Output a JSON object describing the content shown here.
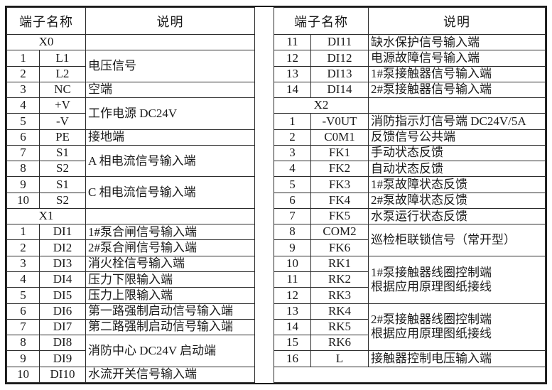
{
  "page": {
    "background": "#ffffff",
    "border_color": "#1b1b1b",
    "text_color": "#1a1a1a"
  },
  "tables": [
    {
      "id": "terminal-table-x0-x1",
      "header": {
        "terminal_name": "端子名称",
        "description": "说明"
      },
      "rows": [
        {
          "type": "section",
          "label": "X0"
        },
        {
          "type": "terminal",
          "num": "1",
          "name": "L1",
          "desc": "电压信号",
          "desc_rowspan": 2
        },
        {
          "type": "terminal",
          "num": "2",
          "name": "L2"
        },
        {
          "type": "terminal",
          "num": "3",
          "name": "NC",
          "desc": "空端",
          "desc_rowspan": 1
        },
        {
          "type": "terminal",
          "num": "4",
          "name": "+V",
          "desc": "工作电源 DC24V",
          "desc_rowspan": 2
        },
        {
          "type": "terminal",
          "num": "5",
          "name": "-V"
        },
        {
          "type": "terminal",
          "num": "6",
          "name": "PE",
          "desc": "接地端",
          "desc_rowspan": 1
        },
        {
          "type": "terminal",
          "num": "7",
          "name": "S1",
          "desc": "A 相电流信号输入端",
          "desc_rowspan": 2
        },
        {
          "type": "terminal",
          "num": "8",
          "name": "S2"
        },
        {
          "type": "terminal",
          "num": "9",
          "name": "S1",
          "desc": "C 相电流信号输入端",
          "desc_rowspan": 2
        },
        {
          "type": "terminal",
          "num": "10",
          "name": "S2"
        },
        {
          "type": "section",
          "label": "X1"
        },
        {
          "type": "terminal",
          "num": "1",
          "name": "DI1",
          "desc": "1#泵合闸信号输入端",
          "desc_rowspan": 1
        },
        {
          "type": "terminal",
          "num": "2",
          "name": "DI2",
          "desc": "2#泵合闸信号输入端",
          "desc_rowspan": 1
        },
        {
          "type": "terminal",
          "num": "3",
          "name": "DI3",
          "desc": "消火栓信号输入端",
          "desc_rowspan": 1
        },
        {
          "type": "terminal",
          "num": "4",
          "name": "DI4",
          "desc": "压力下限输入端",
          "desc_rowspan": 1
        },
        {
          "type": "terminal",
          "num": "5",
          "name": "DI5",
          "desc": "压力上限输入端",
          "desc_rowspan": 1
        },
        {
          "type": "terminal",
          "num": "6",
          "name": "DI6",
          "desc": "第一路强制启动信号输入端",
          "desc_rowspan": 1
        },
        {
          "type": "terminal",
          "num": "7",
          "name": "DI7",
          "desc": "第二路强制启动信号输入端",
          "desc_rowspan": 1
        },
        {
          "type": "terminal",
          "num": "8",
          "name": "DI8",
          "desc": "消防中心 DC24V 启动端",
          "desc_rowspan": 2
        },
        {
          "type": "terminal",
          "num": "9",
          "name": "DI9"
        },
        {
          "type": "terminal",
          "num": "10",
          "name": "DI10",
          "desc": "水流开关信号输入端",
          "desc_rowspan": 1
        }
      ]
    },
    {
      "id": "terminal-table-x2",
      "header": {
        "terminal_name": "端子名称",
        "description": "说明"
      },
      "rows": [
        {
          "type": "terminal",
          "num": "11",
          "name": "DI11",
          "desc": "缺水保护信号输入端",
          "desc_rowspan": 1
        },
        {
          "type": "terminal",
          "num": "12",
          "name": "DI12",
          "desc": "电源故障信号输入端",
          "desc_rowspan": 1
        },
        {
          "type": "terminal",
          "num": "13",
          "name": "DI13",
          "desc": "1#泵接触器信号输入端",
          "desc_rowspan": 1
        },
        {
          "type": "terminal",
          "num": "14",
          "name": "DI14",
          "desc": "2#泵接触器信号输入端",
          "desc_rowspan": 1
        },
        {
          "type": "section",
          "label": "X2"
        },
        {
          "type": "terminal",
          "num": "1",
          "name": "-V0UT",
          "desc": "消防指示灯信号端 DC24V/5A",
          "desc_rowspan": 1
        },
        {
          "type": "terminal",
          "num": "2",
          "name": "C0M1",
          "desc": "反馈信号公共端",
          "desc_rowspan": 1
        },
        {
          "type": "terminal",
          "num": "3",
          "name": "FK1",
          "desc": "手动状态反馈",
          "desc_rowspan": 1
        },
        {
          "type": "terminal",
          "num": "4",
          "name": "FK2",
          "desc": "自动状态反馈",
          "desc_rowspan": 1
        },
        {
          "type": "terminal",
          "num": "5",
          "name": "FK3",
          "desc": "1#泵故障状态反馈",
          "desc_rowspan": 1
        },
        {
          "type": "terminal",
          "num": "6",
          "name": "FK4",
          "desc": "2#泵故障状态反馈",
          "desc_rowspan": 1
        },
        {
          "type": "terminal",
          "num": "7",
          "name": "FK5",
          "desc": "水泵运行状态反馈",
          "desc_rowspan": 1
        },
        {
          "type": "terminal",
          "num": "8",
          "name": "COM2",
          "desc": "巡检柜联锁信号（常开型）",
          "desc_rowspan": 2
        },
        {
          "type": "terminal",
          "num": "9",
          "name": "FK6"
        },
        {
          "type": "terminal",
          "num": "10",
          "name": "RK1",
          "desc": "1#泵接触器线圈控制端\n根据应用原理图纸接线",
          "desc_rowspan": 3
        },
        {
          "type": "terminal",
          "num": "11",
          "name": "RK2"
        },
        {
          "type": "terminal",
          "num": "12",
          "name": "RK3"
        },
        {
          "type": "terminal",
          "num": "13",
          "name": "RK4",
          "desc": "2#泵接触器线圈控制端\n根据应用原理图纸接线",
          "desc_rowspan": 3
        },
        {
          "type": "terminal",
          "num": "14",
          "name": "RK5"
        },
        {
          "type": "terminal",
          "num": "15",
          "name": "RK6"
        },
        {
          "type": "terminal",
          "num": "16",
          "name": "L",
          "desc": "接触器控制电压输入端",
          "desc_rowspan": 1
        },
        {
          "type": "filler"
        }
      ]
    }
  ]
}
